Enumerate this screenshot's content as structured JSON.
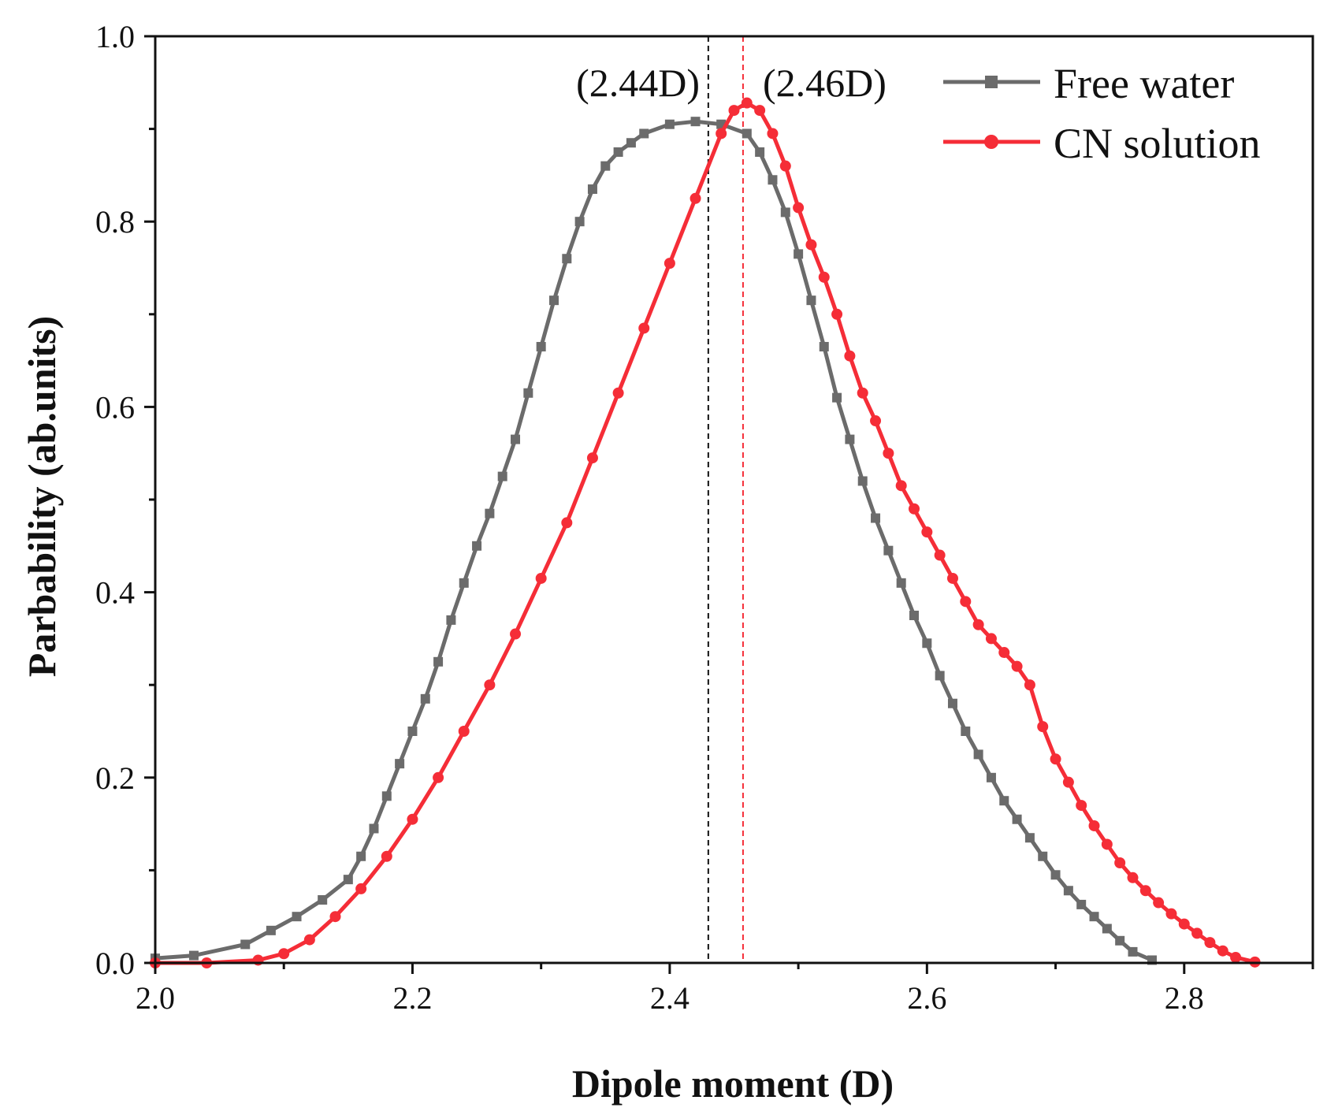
{
  "chart_data": {
    "type": "line",
    "title": "",
    "xlabel": "Dipole moment (D)",
    "ylabel": "Parbability (ab.units)",
    "xlim": [
      2.0,
      2.9
    ],
    "ylim": [
      0.0,
      1.0
    ],
    "x_ticks": [
      "2.0",
      "2.2",
      "2.4",
      "2.6",
      "2.8"
    ],
    "y_ticks": [
      "0.0",
      "0.2",
      "0.4",
      "0.6",
      "0.8",
      "1.0"
    ],
    "legend_position": "top-right",
    "series": [
      {
        "name": "Free water",
        "color": "#6b6b6b",
        "marker": "square",
        "x": [
          2.0,
          2.03,
          2.07,
          2.09,
          2.11,
          2.13,
          2.15,
          2.16,
          2.17,
          2.18,
          2.19,
          2.2,
          2.21,
          2.22,
          2.23,
          2.24,
          2.25,
          2.26,
          2.27,
          2.28,
          2.29,
          2.3,
          2.31,
          2.32,
          2.33,
          2.34,
          2.35,
          2.36,
          2.37,
          2.38,
          2.4,
          2.42,
          2.44,
          2.46,
          2.47,
          2.48,
          2.49,
          2.5,
          2.51,
          2.52,
          2.53,
          2.54,
          2.55,
          2.56,
          2.57,
          2.58,
          2.59,
          2.6,
          2.61,
          2.62,
          2.63,
          2.64,
          2.65,
          2.66,
          2.67,
          2.68,
          2.69,
          2.7,
          2.71,
          2.72,
          2.73,
          2.74,
          2.75,
          2.76,
          2.775
        ],
        "values": [
          0.005,
          0.008,
          0.02,
          0.035,
          0.05,
          0.068,
          0.09,
          0.115,
          0.145,
          0.18,
          0.215,
          0.25,
          0.285,
          0.325,
          0.37,
          0.41,
          0.45,
          0.485,
          0.525,
          0.565,
          0.615,
          0.665,
          0.715,
          0.76,
          0.8,
          0.835,
          0.86,
          0.875,
          0.885,
          0.895,
          0.905,
          0.908,
          0.905,
          0.895,
          0.875,
          0.845,
          0.81,
          0.765,
          0.715,
          0.665,
          0.61,
          0.565,
          0.52,
          0.48,
          0.445,
          0.41,
          0.375,
          0.345,
          0.31,
          0.28,
          0.25,
          0.225,
          0.2,
          0.175,
          0.155,
          0.135,
          0.115,
          0.095,
          0.078,
          0.063,
          0.05,
          0.037,
          0.024,
          0.012,
          0.003
        ]
      },
      {
        "name": "CN solution",
        "color": "#f52d37",
        "marker": "circle",
        "x": [
          2.0,
          2.04,
          2.08,
          2.1,
          2.12,
          2.14,
          2.16,
          2.18,
          2.2,
          2.22,
          2.24,
          2.26,
          2.28,
          2.3,
          2.32,
          2.34,
          2.36,
          2.38,
          2.4,
          2.42,
          2.44,
          2.45,
          2.46,
          2.47,
          2.48,
          2.49,
          2.5,
          2.51,
          2.52,
          2.53,
          2.54,
          2.55,
          2.56,
          2.57,
          2.58,
          2.59,
          2.6,
          2.61,
          2.62,
          2.63,
          2.64,
          2.65,
          2.66,
          2.67,
          2.68,
          2.69,
          2.7,
          2.71,
          2.72,
          2.73,
          2.74,
          2.75,
          2.76,
          2.77,
          2.78,
          2.79,
          2.8,
          2.81,
          2.82,
          2.83,
          2.84,
          2.855
        ],
        "values": [
          0.0,
          0.0,
          0.003,
          0.01,
          0.025,
          0.05,
          0.08,
          0.115,
          0.155,
          0.2,
          0.25,
          0.3,
          0.355,
          0.415,
          0.475,
          0.545,
          0.615,
          0.685,
          0.755,
          0.825,
          0.895,
          0.92,
          0.928,
          0.92,
          0.895,
          0.86,
          0.815,
          0.775,
          0.74,
          0.7,
          0.655,
          0.615,
          0.585,
          0.55,
          0.515,
          0.49,
          0.465,
          0.44,
          0.415,
          0.39,
          0.365,
          0.35,
          0.335,
          0.32,
          0.3,
          0.255,
          0.22,
          0.195,
          0.17,
          0.148,
          0.128,
          0.108,
          0.092,
          0.078,
          0.065,
          0.053,
          0.042,
          0.032,
          0.022,
          0.013,
          0.006,
          0.001
        ]
      }
    ],
    "annotations": [
      {
        "text": "(2.44D)",
        "x": 2.43,
        "color": "#111111",
        "style": "dashed"
      },
      {
        "text": "(2.46D)",
        "x": 2.457,
        "color": "#f52d37",
        "style": "dashed"
      }
    ]
  }
}
